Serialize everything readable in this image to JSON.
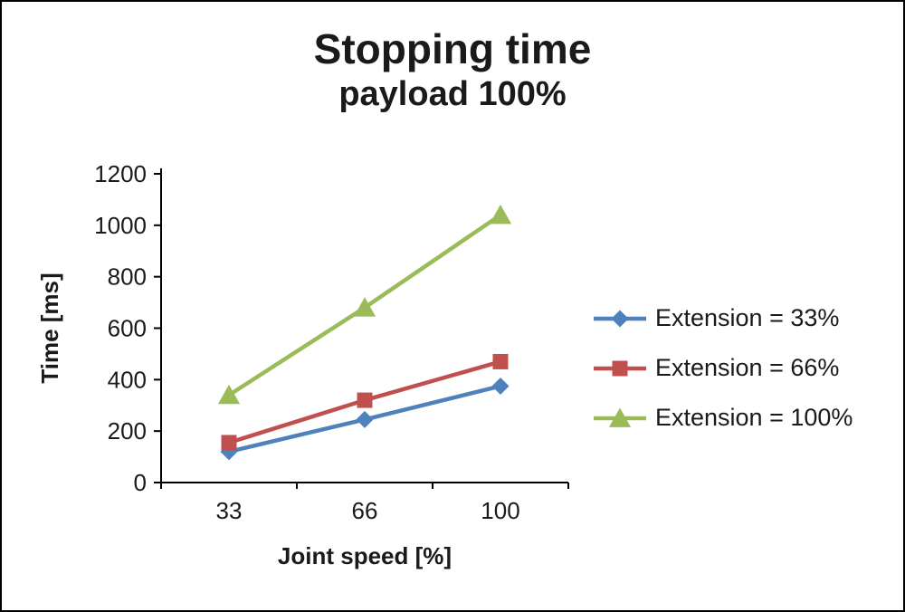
{
  "title": "Stopping time",
  "subtitle": "payload 100%",
  "chart_data": {
    "type": "line",
    "categories": [
      "33",
      "66",
      "100"
    ],
    "series": [
      {
        "name": "Extension = 33%",
        "values": [
          120,
          245,
          375
        ],
        "color": "#4F81BD",
        "marker": "diamond"
      },
      {
        "name": "Extension = 66%",
        "values": [
          155,
          320,
          470
        ],
        "color": "#C0504D",
        "marker": "square"
      },
      {
        "name": "Extension = 100%",
        "values": [
          340,
          680,
          1040
        ],
        "color": "#9BBB59",
        "marker": "triangle"
      }
    ],
    "xlabel": "Joint speed [%]",
    "ylabel": "Time [ms]",
    "ylim": [
      0,
      1200
    ],
    "ytick_step": 200,
    "legend_position": "right",
    "grid": false,
    "axis_color": "#000000",
    "text_color": "#1a1a1a"
  }
}
